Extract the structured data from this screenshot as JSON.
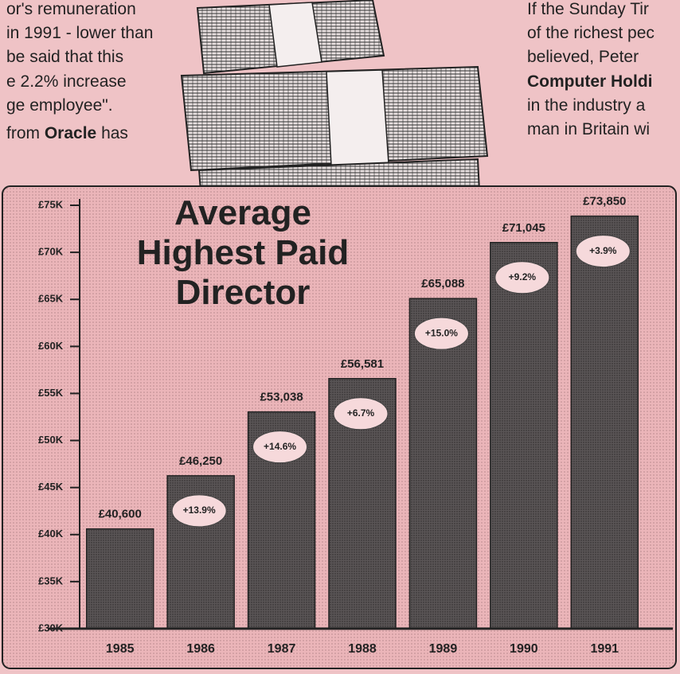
{
  "article": {
    "left_lines": [
      [
        {
          "text": "or's remuneration",
          "bold": false
        }
      ],
      [
        {
          "text": "in 1991 - lower than",
          "bold": false
        }
      ],
      [
        {
          "text": "be said that this",
          "bold": false
        }
      ],
      [
        {
          "text": "e 2.2% increase",
          "bold": false
        }
      ],
      [
        {
          "text": "ge employee\".",
          "bold": false
        }
      ],
      [
        {
          "text": "from ",
          "bold": false
        },
        {
          "text": "Oracle",
          "bold": true
        },
        {
          "text": " has",
          "bold": false
        }
      ]
    ],
    "right_lines": [
      [
        {
          "text": "If the Sunday Tir",
          "bold": false
        }
      ],
      [
        {
          "text": "of the richest pec",
          "bold": false
        }
      ],
      [
        {
          "text": "believed,  Peter",
          "bold": false
        }
      ],
      [
        {
          "text": "Computer Holdi",
          "bold": true
        }
      ],
      [
        {
          "text": "in the industry a",
          "bold": false
        }
      ],
      [
        {
          "text": "man in Britain wi",
          "bold": false
        }
      ]
    ]
  },
  "chart_data": {
    "type": "bar",
    "title": [
      "Average",
      "Highest Paid",
      "Director"
    ],
    "categories": [
      "1985",
      "1986",
      "1987",
      "1988",
      "1989",
      "1990",
      "1991"
    ],
    "values": [
      40600,
      46250,
      53038,
      56581,
      65088,
      71045,
      73850
    ],
    "value_labels": [
      "£40,600",
      "£46,250",
      "£53,038",
      "£56,581",
      "£65,088",
      "£71,045",
      "£73,850"
    ],
    "change_labels": [
      null,
      "+13.9%",
      "+14.6%",
      "+6.7%",
      "+15.0%",
      "+9.2%",
      "+3.9%"
    ],
    "color": "#5a5556",
    "ylim": [
      30000,
      75000
    ],
    "yticks": [
      {
        "value": 30000,
        "label": "£30K"
      },
      {
        "value": 35000,
        "label": "£35K"
      },
      {
        "value": 40000,
        "label": "£40K"
      },
      {
        "value": 45000,
        "label": "£45K"
      },
      {
        "value": 50000,
        "label": "£50K"
      },
      {
        "value": 55000,
        "label": "£55K"
      },
      {
        "value": 60000,
        "label": "£60K"
      },
      {
        "value": 65000,
        "label": "£65K"
      },
      {
        "value": 70000,
        "label": "£70K"
      },
      {
        "value": 75000,
        "label": "£75K"
      }
    ]
  }
}
